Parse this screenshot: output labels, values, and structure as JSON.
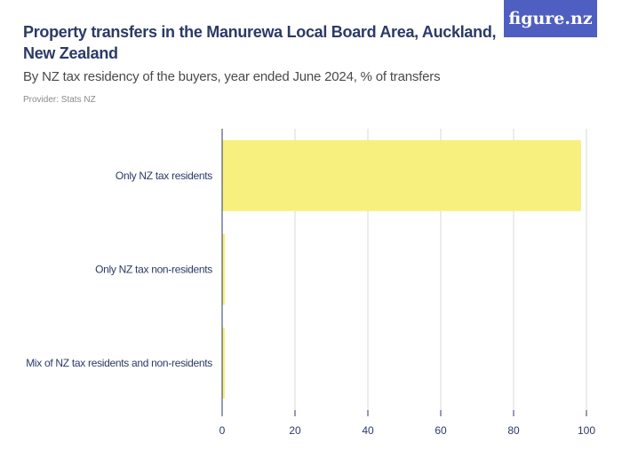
{
  "header": {
    "title": "Property transfers in the Manurewa Local Board Area, Auckland, New Zealand",
    "subtitle": "By NZ tax residency of the buyers, year ended June 2024, % of transfers",
    "provider": "Provider: Stats NZ",
    "logo": "figure.nz"
  },
  "chart_data": {
    "type": "bar",
    "orientation": "horizontal",
    "title": "Property transfers in the Manurewa Local Board Area, Auckland, New Zealand",
    "subtitle": "By NZ tax residency of the buyers, year ended June 2024, % of transfers",
    "categories": [
      "Only NZ tax residents",
      "Only NZ tax non-residents",
      "Mix of NZ tax residents and non-residents"
    ],
    "values": [
      98.5,
      0.8,
      0.7
    ],
    "xlim": [
      0,
      100
    ],
    "xticks": [
      0,
      20,
      40,
      60,
      80,
      100
    ],
    "grid": true,
    "bar_color": "#f7f07e",
    "grid_color": "#d9d9d9",
    "axis_color": "#2b3a67"
  },
  "colors": {
    "brand": "#4f5fc1",
    "title": "#2b3a67"
  }
}
